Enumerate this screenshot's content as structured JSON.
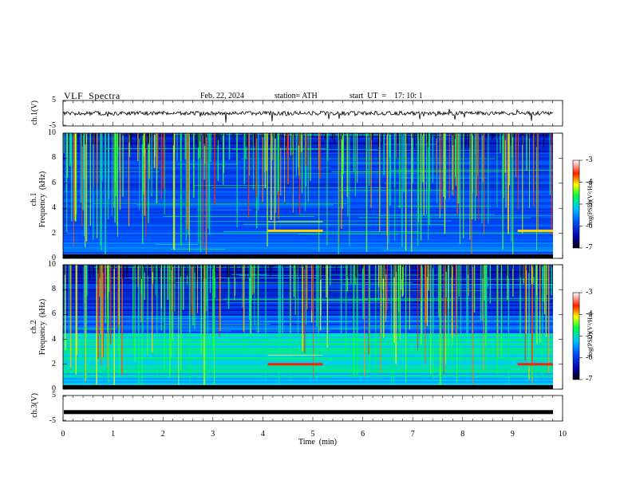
{
  "header": {
    "title": "VLF  Spectra",
    "date": "Feb. 22, 2024",
    "station": "station= ATH",
    "start_ut": "start  UT  =    17: 10: 1"
  },
  "chart_data": [
    {
      "type": "line",
      "name": "ch1-waveform",
      "ylabel": "ch.1(V)",
      "ylim": [
        -5,
        5
      ],
      "yticks": [
        "5",
        "-5"
      ],
      "xlim": [
        0,
        10
      ]
    },
    {
      "type": "heatmap",
      "name": "ch1-spectrogram",
      "ylabel_top": "ch.1",
      "ylabel": "Frequency  (kHz)",
      "ylim": [
        0,
        10
      ],
      "yticks": [
        "0",
        "2",
        "4",
        "6",
        "8",
        "10"
      ],
      "colorbar": {
        "label": "log(PSD)(V²/Hz)",
        "ticks": [
          "-3",
          "-4",
          "-5",
          "-6",
          "-7"
        ],
        "range": [
          -7,
          -3
        ]
      },
      "features": {
        "tone_khz": 2.2,
        "tone_start_min": 4.1,
        "tone_end_min": 5.2,
        "tone2_start_min": 9.1
      }
    },
    {
      "type": "heatmap",
      "name": "ch2-spectrogram",
      "ylabel_top": "ch.2",
      "ylabel": "Frequency  (kHz)",
      "ylim": [
        0,
        10
      ],
      "yticks": [
        "0",
        "2",
        "4",
        "6",
        "8",
        "10"
      ],
      "colorbar": {
        "label": "log(PSD)(V²/Hz)",
        "ticks": [
          "-3",
          "-4",
          "-5",
          "-6",
          "-7"
        ],
        "range": [
          -7,
          -3
        ]
      },
      "features": {
        "tone_khz": 2.0,
        "tone_start_min": 4.1,
        "tone_end_min": 5.2,
        "tone2_start_min": 9.1
      }
    },
    {
      "type": "line",
      "name": "ch3-waveform",
      "ylabel": "ch.3(V)",
      "ylim": [
        -5,
        5
      ],
      "yticks": [
        "5",
        "-5"
      ],
      "constant_value": -1.5,
      "xlim": [
        0,
        10
      ]
    }
  ],
  "xaxis": {
    "label": "Time  (min)",
    "ticks": [
      "0",
      "1",
      "2",
      "3",
      "4",
      "5",
      "6",
      "7",
      "8",
      "9",
      "10"
    ],
    "range": [
      0,
      10
    ]
  }
}
